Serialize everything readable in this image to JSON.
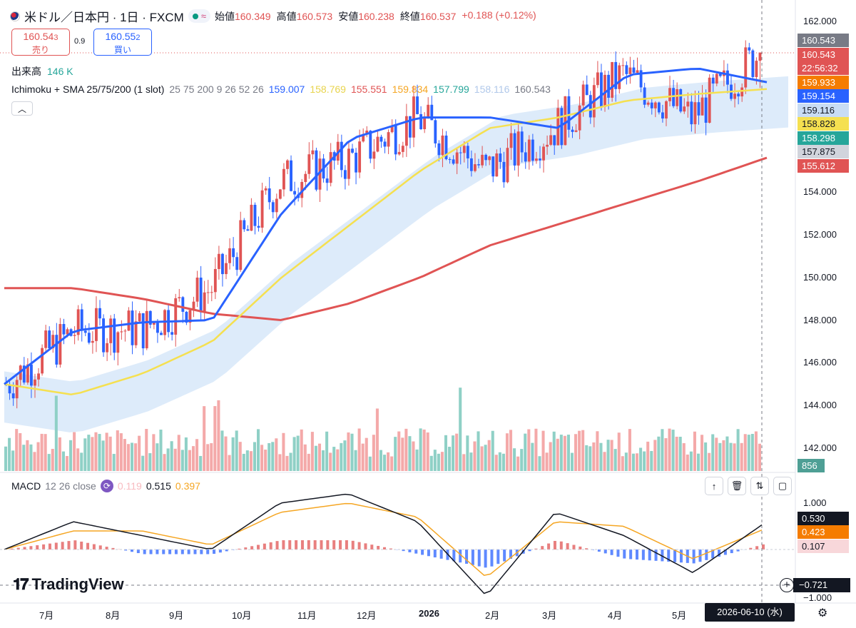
{
  "header": {
    "symbol": "米ドル／日本円 · 1日 · FXCM",
    "open_label": "始値",
    "open": "160.349",
    "high_label": "高値",
    "high": "160.573",
    "low_label": "安値",
    "low": "160.238",
    "close_label": "終値",
    "close": "160.537",
    "change": "+0.188 (+0.12%)"
  },
  "trade": {
    "sell_price": "160.54",
    "sell_sup": "3",
    "sell_label": "売り",
    "spread": "0.9",
    "buy_price": "160.55",
    "buy_sup": "2",
    "buy_label": "買い"
  },
  "volume_legend": {
    "label": "出来高",
    "value": "146 K"
  },
  "indicator_legend": {
    "name": "Ichimoku + SMA 25/75/200 (1 slot)",
    "params": "25 75 200 9 26 52 26",
    "v1": "159.007",
    "v2": "158.769",
    "v3": "155.551",
    "v4": "159.834",
    "v5": "157.799",
    "v6": "158.116",
    "v7": "160.543",
    "colors": {
      "v1": "#2962ff",
      "v2": "#f5e050",
      "v3": "#e05454",
      "v4": "#f5a623",
      "v5": "#26a69a",
      "v6": "#b0c8ea",
      "v7": "#787b86"
    }
  },
  "macd_legend": {
    "name": "MACD",
    "params": "12 26 close",
    "hist": "0.119",
    "macd": "0.515",
    "signal": "0.397"
  },
  "price_axis": {
    "ticks": [
      "162.000",
      "160.000",
      "158.000",
      "156.000",
      "154.000",
      "152.000",
      "150.000",
      "148.000",
      "146.000",
      "144.000",
      "142.000"
    ],
    "tags": [
      {
        "text": "160.543",
        "color": "#787b86"
      },
      {
        "text": "160.543",
        "color": "#e05454"
      },
      {
        "text": "22:56:32",
        "color": "#e05454"
      },
      {
        "text": "159.933",
        "color": "#f57c00"
      },
      {
        "text": "159.154",
        "color": "#2962ff"
      },
      {
        "text": "159.116",
        "color": "#c8dcf4"
      },
      {
        "text": "158.828",
        "color": "#f5e050"
      },
      {
        "text": "158.298",
        "color": "#26a69a"
      },
      {
        "text": "157.875",
        "color": "#d1d4dc"
      },
      {
        "text": "155.612",
        "color": "#e05454"
      }
    ],
    "volume_tag": "856"
  },
  "macd_axis": {
    "ticks": [
      "1.000",
      "−1.000"
    ],
    "tags": [
      {
        "text": "0.530",
        "color": "#131722"
      },
      {
        "text": "0.423",
        "color": "#f57c00"
      },
      {
        "text": "0.107",
        "color": "#f8d7da"
      }
    ],
    "crosshair": "−0.721"
  },
  "time_axis": {
    "labels": [
      "7月",
      "8月",
      "9月",
      "10月",
      "11月",
      "12月",
      "2026",
      "2月",
      "3月",
      "4月",
      "5月"
    ],
    "crosshair_date": "2026-06-10 (水)"
  },
  "branding": {
    "logo": "TradingView"
  },
  "chart_data": {
    "type": "candlestick",
    "title": "米ドル／日本円 · 1日 · FXCM",
    "ylim": [
      141.0,
      163.0
    ],
    "x_months": [
      "7月",
      "8月",
      "9月",
      "10月",
      "11月",
      "12月",
      "2026",
      "2月",
      "3月",
      "4月",
      "5月"
    ],
    "close_path": [
      {
        "month": "7月",
        "value": 145.0
      },
      {
        "month": "8月",
        "value": 147.5
      },
      {
        "month": "9月",
        "value": 147.6
      },
      {
        "month": "10月",
        "value": 149.5
      },
      {
        "month": "11月",
        "value": 154.5
      },
      {
        "month": "12月",
        "value": 155.5
      },
      {
        "month": "2026",
        "value": 157.5
      },
      {
        "month": "2月",
        "value": 155.0
      },
      {
        "month": "3月",
        "value": 157.0
      },
      {
        "month": "4月",
        "value": 159.5
      },
      {
        "month": "5月",
        "value": 157.5
      },
      {
        "month": "end",
        "value": 160.54
      }
    ],
    "sma25": [
      145.0,
      147.5,
      147.9,
      148.0,
      153.0,
      156.5,
      157.5,
      157.5,
      157.0,
      159.5,
      159.8,
      159.15
    ],
    "sma75": [
      145.0,
      144.5,
      145.5,
      147.0,
      150.0,
      152.5,
      155.0,
      157.0,
      157.5,
      158.3,
      158.6,
      158.83
    ],
    "sma200": [
      149.5,
      149.5,
      149.0,
      148.3,
      148.0,
      148.8,
      150.0,
      151.5,
      152.5,
      153.5,
      154.5,
      155.61
    ],
    "macd": [
      0.0,
      0.6,
      0.3,
      0.0,
      1.0,
      1.2,
      0.6,
      -1.0,
      0.8,
      0.3,
      -0.5,
      0.53
    ],
    "signal": [
      0.0,
      0.4,
      0.4,
      0.1,
      0.8,
      1.0,
      0.7,
      -0.6,
      0.6,
      0.5,
      -0.2,
      0.42
    ],
    "last_price": 160.543
  }
}
